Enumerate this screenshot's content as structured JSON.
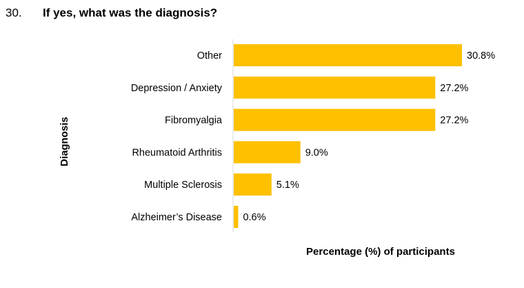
{
  "question": {
    "number": "30.",
    "text": "If yes, what was the diagnosis?"
  },
  "chart_data": {
    "type": "bar",
    "orientation": "horizontal",
    "categories": [
      "Other",
      "Depression / Anxiety",
      "Fibromyalgia",
      "Rheumatoid Arthritis",
      "Multiple Sclerosis",
      "Alzheimer’s Disease"
    ],
    "values": [
      30.8,
      27.2,
      27.2,
      9.0,
      5.1,
      0.6
    ],
    "data_labels": [
      "30.8%",
      "27.2%",
      "27.2%",
      "9.0%",
      "5.1%",
      "0.6%"
    ],
    "xlabel": "Percentage (%) of participants",
    "ylabel": "Diagnosis",
    "xlim": [
      0,
      30.8
    ],
    "bar_color": "#FFC000",
    "axis_color": "#D9D9D9",
    "grid": false,
    "legend": "none"
  }
}
